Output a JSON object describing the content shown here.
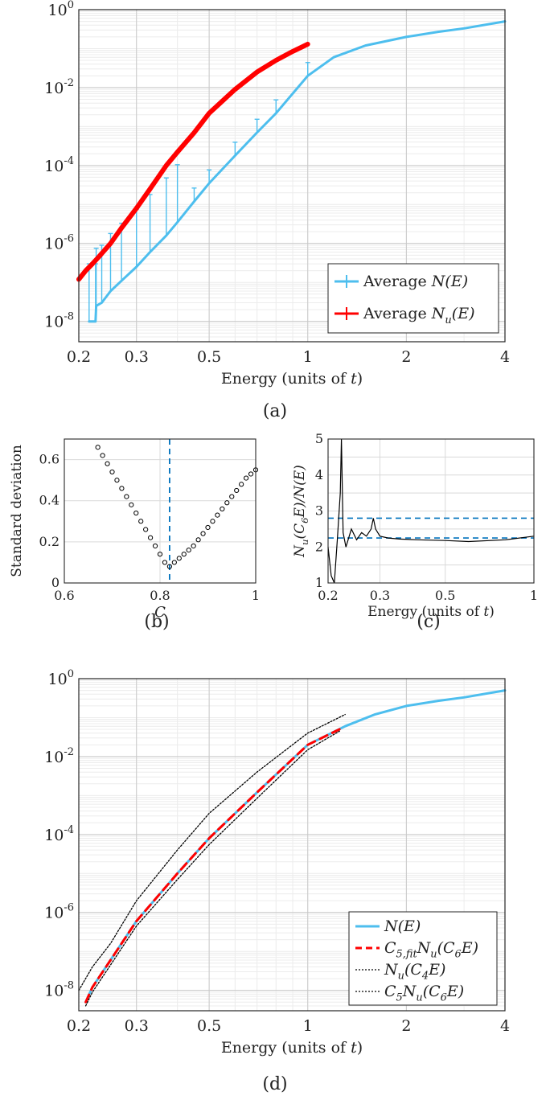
{
  "chart_data": [
    {
      "panel": "(a)",
      "type": "line",
      "xscale": "log",
      "yscale": "log",
      "xlabel": "Energy (units of t)",
      "xlim": [
        0.2,
        4
      ],
      "ylim": [
        3e-09,
        1
      ],
      "xticks": [
        0.2,
        0.3,
        0.5,
        1,
        2,
        4
      ],
      "xtick_labels": [
        "0.2",
        "0.3",
        "0.5",
        "1",
        "2",
        "4"
      ],
      "ytick_labels": [
        {
          "base": "10",
          "exp": "0"
        },
        {
          "base": "10",
          "exp": "-2"
        },
        {
          "base": "10",
          "exp": "-4"
        },
        {
          "base": "10",
          "exp": "-6"
        },
        {
          "base": "10",
          "exp": "-8"
        }
      ],
      "grid": "major and minor",
      "legend_position": "bottom-right",
      "series": [
        {
          "name": "Average N(E)",
          "legend_main": "Average ",
          "legend_math": "N(E)",
          "color": "#4DBEEE",
          "errorbars": true,
          "x": [
            0.215,
            0.225,
            0.226,
            0.235,
            0.25,
            0.27,
            0.3,
            0.33,
            0.37,
            0.4,
            0.45,
            0.5,
            0.6,
            0.7,
            0.8,
            1.0,
            1.2,
            1.5,
            2.0,
            2.5,
            3.0,
            4.0
          ],
          "y": [
            1e-08,
            1e-08,
            2.5e-08,
            3e-08,
            6e-08,
            1.1e-07,
            2.5e-07,
            6e-07,
            1.6e-06,
            3.5e-06,
            1.2e-05,
            3.5e-05,
            0.00018,
            0.0007,
            0.0022,
            0.02,
            0.06,
            0.12,
            0.2,
            0.27,
            0.33,
            0.5
          ]
        },
        {
          "name": "Average N_u(E)",
          "legend_main": "Average ",
          "legend_math": "N_u(E)",
          "color": "#FF0000",
          "x": [
            0.2,
            0.21,
            0.22,
            0.23,
            0.25,
            0.27,
            0.3,
            0.33,
            0.37,
            0.4,
            0.45,
            0.5,
            0.6,
            0.7,
            0.8,
            0.9,
            1.0
          ],
          "y": [
            1.2e-07,
            2e-07,
            3e-07,
            4.5e-07,
            1e-06,
            2.5e-06,
            8e-06,
            2.5e-05,
            0.0001,
            0.00022,
            0.0007,
            0.0022,
            0.009,
            0.025,
            0.05,
            0.085,
            0.13
          ]
        }
      ]
    },
    {
      "panel": "(b)",
      "type": "scatter",
      "xlabel": "C",
      "ylabel": "Standard deviation",
      "xlim": [
        0.6,
        1
      ],
      "ylim": [
        0,
        0.7
      ],
      "xticks": [
        0.6,
        0.8,
        1
      ],
      "xtick_labels": [
        "0.6",
        "0.8",
        "1"
      ],
      "yticks": [
        0,
        0.2,
        0.4,
        0.6
      ],
      "ytick_labels": [
        "0",
        "0.2",
        "0.4",
        "0.6"
      ],
      "grid": "on",
      "vline": 0.82,
      "series": [
        {
          "marker": "circle",
          "x": [
            0.67,
            0.68,
            0.69,
            0.7,
            0.71,
            0.72,
            0.73,
            0.74,
            0.75,
            0.76,
            0.77,
            0.78,
            0.79,
            0.8,
            0.81,
            0.82,
            0.83,
            0.84,
            0.85,
            0.86,
            0.87,
            0.88,
            0.89,
            0.9,
            0.91,
            0.92,
            0.93,
            0.94,
            0.95,
            0.96,
            0.97,
            0.98,
            0.99,
            1.0
          ],
          "y": [
            0.66,
            0.62,
            0.58,
            0.54,
            0.5,
            0.46,
            0.42,
            0.38,
            0.34,
            0.3,
            0.26,
            0.22,
            0.18,
            0.14,
            0.1,
            0.08,
            0.1,
            0.12,
            0.14,
            0.16,
            0.18,
            0.21,
            0.24,
            0.27,
            0.3,
            0.33,
            0.36,
            0.39,
            0.42,
            0.45,
            0.48,
            0.51,
            0.53,
            0.55
          ]
        }
      ]
    },
    {
      "panel": "(c)",
      "type": "line",
      "xscale": "log",
      "xlabel": "Energy (units of t)",
      "ylabel": "N_u(C_6E)/N(E)",
      "xlim": [
        0.2,
        1
      ],
      "ylim": [
        1,
        5
      ],
      "xticks": [
        0.2,
        0.3,
        0.5,
        1
      ],
      "xtick_labels": [
        "0.2",
        "0.3",
        "0.5",
        "1"
      ],
      "yticks": [
        1,
        1.5,
        2,
        2.5,
        3,
        3.5,
        4,
        4.5,
        5
      ],
      "ytick_labels": [
        "1",
        "1.5",
        "2",
        "2.5",
        "3",
        "3.5",
        "4",
        "4.5",
        "5"
      ],
      "grid": "on",
      "hlines": [
        2.8,
        2.25
      ],
      "series": [
        {
          "color": "#000000",
          "x": [
            0.2,
            0.205,
            0.21,
            0.215,
            0.22,
            0.222,
            0.225,
            0.23,
            0.24,
            0.25,
            0.26,
            0.27,
            0.28,
            0.285,
            0.29,
            0.3,
            0.32,
            0.35,
            0.4,
            0.5,
            0.6,
            0.8,
            1.0
          ],
          "y": [
            2.0,
            1.2,
            1.0,
            2.2,
            3.5,
            5.0,
            2.4,
            2.0,
            2.5,
            2.2,
            2.4,
            2.3,
            2.5,
            2.8,
            2.5,
            2.3,
            2.25,
            2.22,
            2.2,
            2.18,
            2.15,
            2.2,
            2.3
          ]
        }
      ]
    },
    {
      "panel": "(d)",
      "type": "line",
      "xscale": "log",
      "yscale": "log",
      "xlabel": "Energy (units of t)",
      "xlim": [
        0.2,
        4
      ],
      "ylim": [
        3e-09,
        1
      ],
      "xticks": [
        0.2,
        0.3,
        0.5,
        1,
        2,
        4
      ],
      "xtick_labels": [
        "0.2",
        "0.3",
        "0.5",
        "1",
        "2",
        "4"
      ],
      "ytick_labels": [
        {
          "base": "10",
          "exp": "0"
        },
        {
          "base": "10",
          "exp": "-2"
        },
        {
          "base": "10",
          "exp": "-4"
        },
        {
          "base": "10",
          "exp": "-6"
        },
        {
          "base": "10",
          "exp": "-8"
        }
      ],
      "grid": "major and minor",
      "legend_position": "bottom-right",
      "series": [
        {
          "name": "N(E)",
          "color": "#4DBEEE",
          "x": [
            0.21,
            0.22,
            0.25,
            0.3,
            0.4,
            0.5,
            0.7,
            1.0,
            1.3,
            1.6,
            2.0,
            2.5,
            3.0,
            4.0
          ],
          "y": [
            5e-09,
            1.2e-08,
            6e-08,
            6e-07,
            1e-05,
            8e-05,
            0.0012,
            0.02,
            0.06,
            0.12,
            0.2,
            0.27,
            0.33,
            0.5
          ]
        },
        {
          "name": "C_{5,fit}N_u(C_6E)",
          "color": "#FF0000",
          "dash": "dashed",
          "x": [
            0.21,
            0.22,
            0.25,
            0.3,
            0.4,
            0.5,
            0.7,
            1.0,
            1.25
          ],
          "y": [
            5e-09,
            1.2e-08,
            6e-08,
            6e-07,
            1e-05,
            8e-05,
            0.0012,
            0.02,
            0.05
          ]
        },
        {
          "name": "N_u(C_4E)",
          "color": "#000000",
          "dash": "dotted",
          "x": [
            0.2,
            0.22,
            0.25,
            0.3,
            0.4,
            0.5,
            0.7,
            1.0,
            1.3
          ],
          "y": [
            1e-08,
            4e-08,
            1.6e-07,
            2e-06,
            4e-05,
            0.00035,
            0.004,
            0.04,
            0.12
          ]
        },
        {
          "name": "C_5N_u(C_6E)",
          "color": "#000000",
          "dash": "dotted",
          "x": [
            0.21,
            0.22,
            0.25,
            0.3,
            0.4,
            0.5,
            0.7,
            1.0,
            1.25
          ],
          "y": [
            4e-09,
            9e-09,
            4.5e-08,
            4.5e-07,
            7e-06,
            5.5e-05,
            0.00085,
            0.015,
            0.045
          ]
        }
      ]
    }
  ],
  "labels": {
    "panel_a": "(a)",
    "panel_b": "(b)",
    "panel_c": "(c)",
    "panel_d": "(d)"
  },
  "colors": {
    "cyan": "#4DBEEE",
    "red": "#FF0000",
    "vline_blue": "#0072BD",
    "grid": "#d9d9d9"
  }
}
